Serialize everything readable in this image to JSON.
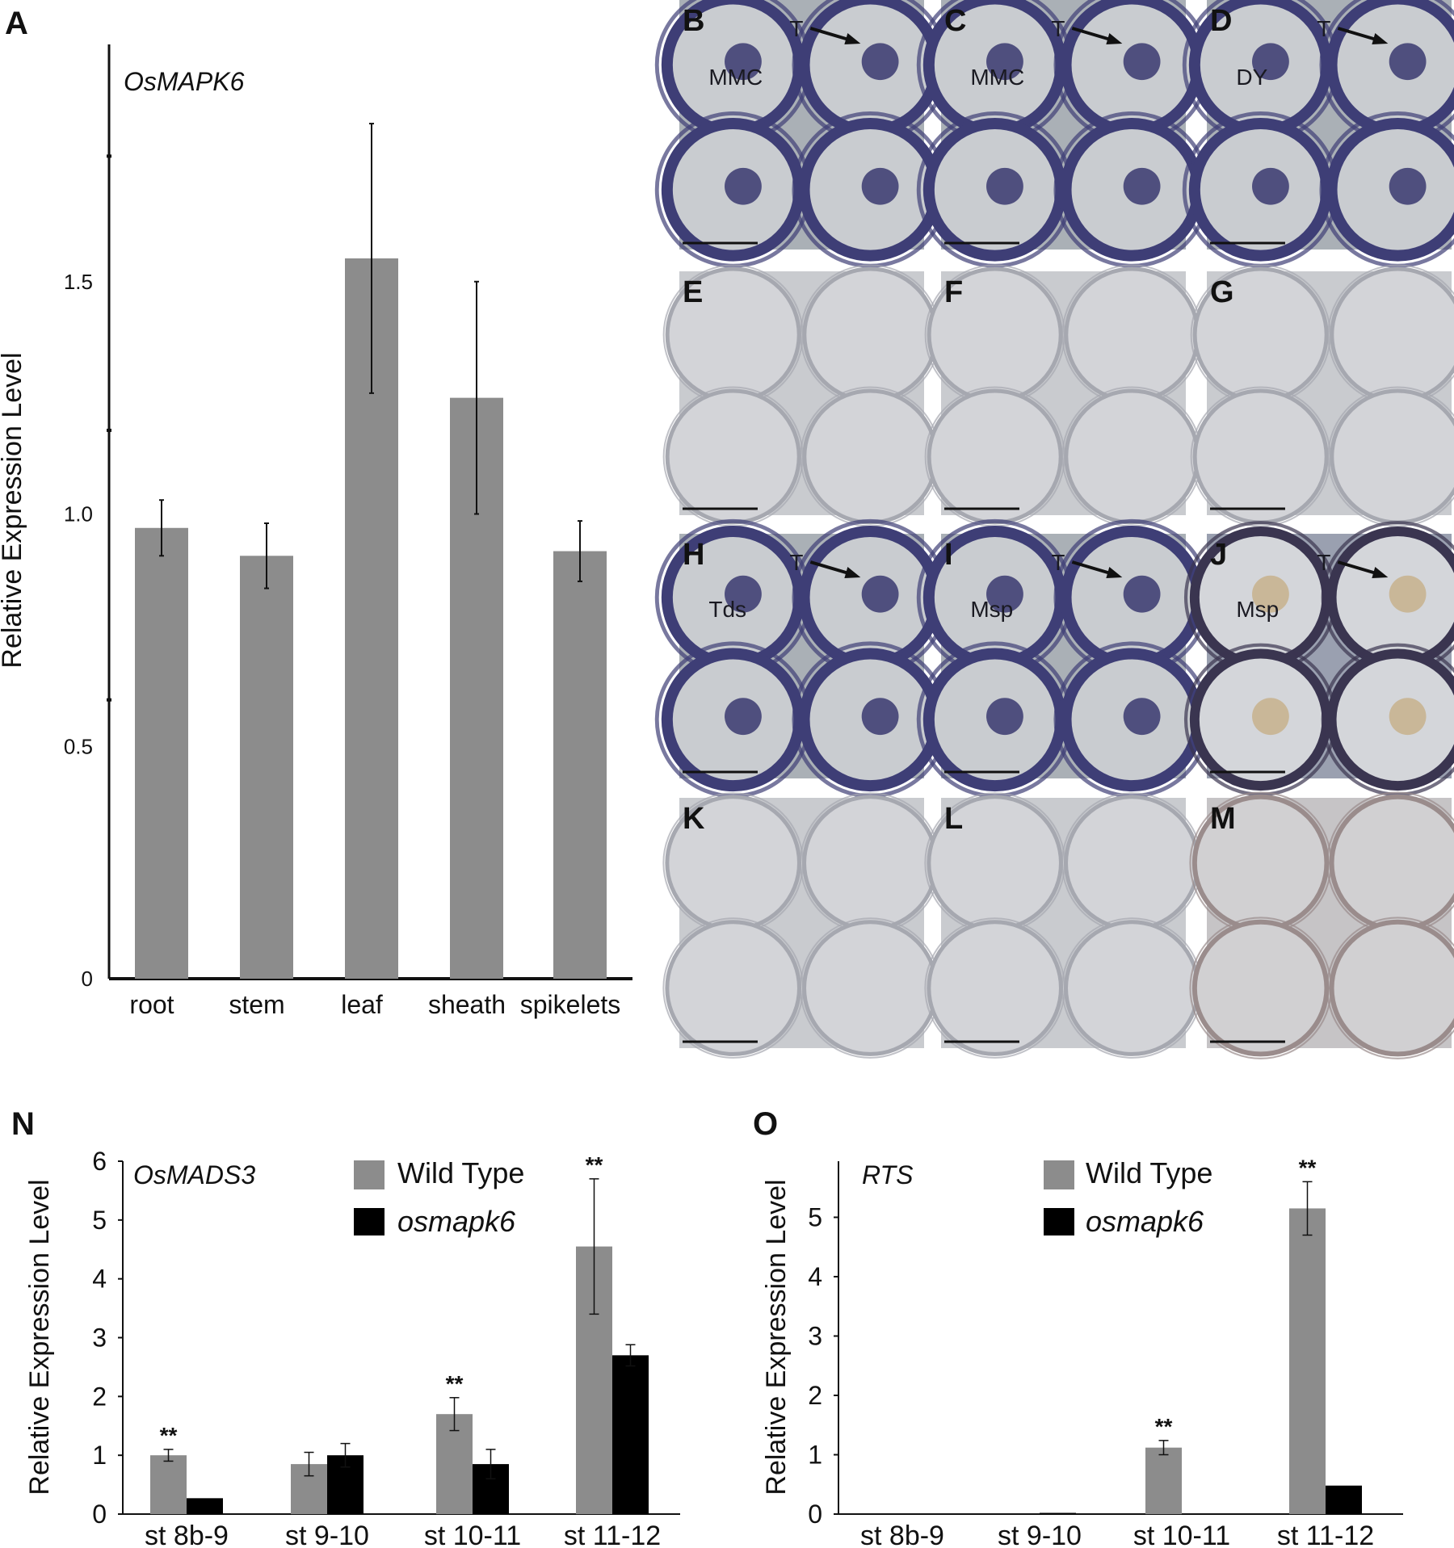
{
  "panels": {
    "A": "A",
    "N": "N",
    "O": "O"
  },
  "chart_data": [
    {
      "panel": "A",
      "type": "bar",
      "title": "OsMAPK6",
      "ylabel": "Relative Expression Level",
      "xlabel": "",
      "categories": [
        "root",
        "stem",
        "leaf",
        "sheath",
        "spikelets"
      ],
      "values": [
        0.97,
        0.91,
        1.55,
        1.25,
        0.92
      ],
      "errors": [
        0.06,
        0.07,
        0.29,
        0.25,
        0.065
      ],
      "ylim": [
        0,
        1.95
      ],
      "yticks": [
        0,
        0.5,
        1.0,
        1.5
      ],
      "ytick_labels": [
        "0",
        "0.5",
        "1.0",
        "1.5"
      ],
      "color": "#8c8c8c",
      "grid": false
    },
    {
      "panel": "N",
      "type": "bar",
      "title": "OsMADS3",
      "ylabel": "Relative Expression Level",
      "xlabel": "",
      "categories": [
        "st 8b-9",
        "st 9-10",
        "st 10-11",
        "st 11-12"
      ],
      "series": [
        {
          "name": "Wild Type",
          "values": [
            1.0,
            0.85,
            1.7,
            4.55
          ],
          "errors": [
            0.1,
            0.2,
            0.28,
            1.15
          ],
          "color": "#8c8c8c"
        },
        {
          "name": "osmapk6",
          "values": [
            0.27,
            1.0,
            0.85,
            2.7
          ],
          "errors": [
            0,
            0.2,
            0.25,
            0.18
          ],
          "color": "#000000"
        }
      ],
      "significance": [
        "**",
        "",
        "**",
        "**"
      ],
      "ylim": [
        0,
        6
      ],
      "yticks": [
        0,
        1,
        2,
        3,
        4,
        5,
        6
      ],
      "legend": "top-right",
      "grid": false
    },
    {
      "panel": "O",
      "type": "bar",
      "title": "RTS",
      "ylabel": "Relative Expression Level",
      "xlabel": "",
      "categories": [
        "st 8b-9",
        "st 9-10",
        "st 10-11",
        "st 11-12"
      ],
      "series": [
        {
          "name": "Wild Type",
          "values": [
            0,
            0,
            1.12,
            5.15
          ],
          "errors": [
            0,
            0,
            0.12,
            0.45
          ],
          "color": "#8c8c8c"
        },
        {
          "name": "osmapk6",
          "values": [
            0,
            0.01,
            0,
            0.48
          ],
          "errors": [
            0,
            0,
            0,
            0
          ],
          "color": "#000000"
        }
      ],
      "significance": [
        "",
        "",
        "**",
        "**"
      ],
      "ylim": [
        0,
        5.85
      ],
      "yticks": [
        0,
        1,
        2,
        3,
        4,
        5
      ],
      "legend": "top-right",
      "grid": false
    }
  ],
  "micrographs": [
    {
      "id": "B",
      "labels": [
        "T",
        "MMC"
      ],
      "stain": "dark"
    },
    {
      "id": "C",
      "labels": [
        "T",
        "MMC"
      ],
      "stain": "dark"
    },
    {
      "id": "D",
      "labels": [
        "T",
        "DY"
      ],
      "stain": "dark"
    },
    {
      "id": "E",
      "labels": [],
      "stain": "light"
    },
    {
      "id": "F",
      "labels": [],
      "stain": "light"
    },
    {
      "id": "G",
      "labels": [],
      "stain": "light"
    },
    {
      "id": "H",
      "labels": [
        "T",
        "Tds"
      ],
      "stain": "dark"
    },
    {
      "id": "I",
      "labels": [
        "T",
        "Msp"
      ],
      "stain": "dark"
    },
    {
      "id": "J",
      "labels": [
        "T",
        "Msp"
      ],
      "stain": "brown"
    },
    {
      "id": "K",
      "labels": [],
      "stain": "light"
    },
    {
      "id": "L",
      "labels": [],
      "stain": "light"
    },
    {
      "id": "M",
      "labels": [],
      "stain": "light-brown"
    }
  ]
}
